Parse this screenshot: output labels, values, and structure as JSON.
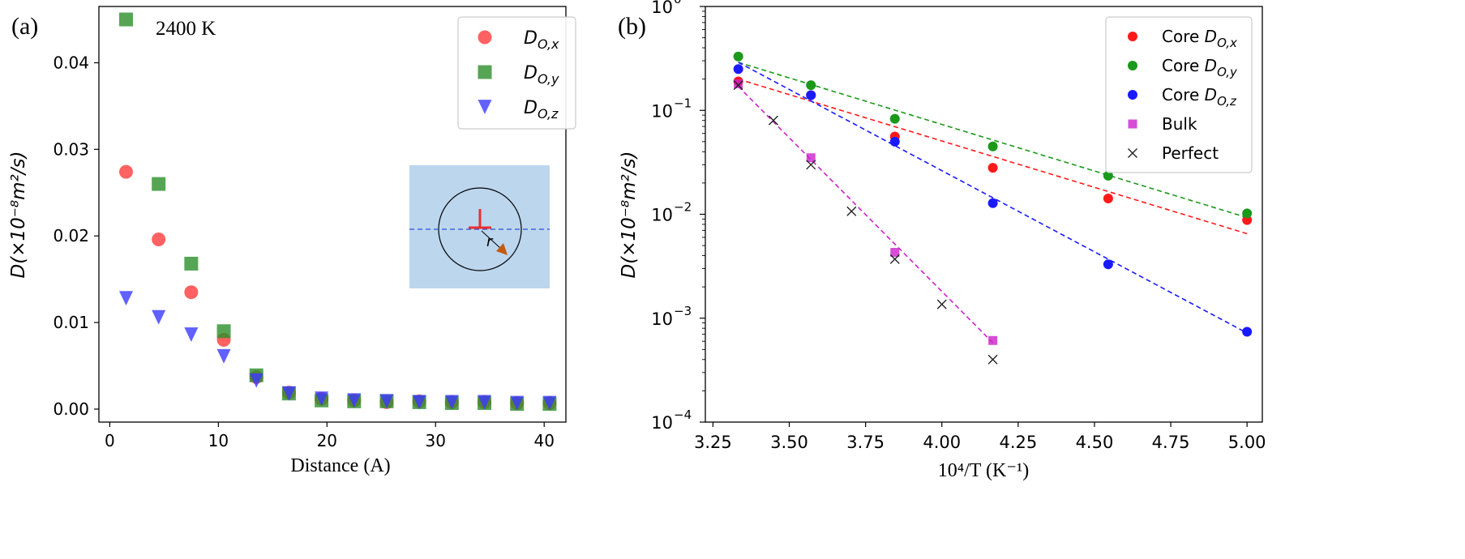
{
  "chart_data": [
    {
      "panel_label": "(a)",
      "type": "scatter",
      "annotation": "2400 K",
      "xlabel": "Distance (A)",
      "ylabel": "D(×10⁻⁸m²/s)",
      "xlim": [
        -1,
        42
      ],
      "ylim": [
        -0.0015,
        0.0465
      ],
      "xticks": [
        0,
        10,
        20,
        30,
        40
      ],
      "xtick_labels": [
        "0",
        "10",
        "20",
        "30",
        "40"
      ],
      "yticks": [
        0,
        0.01,
        0.02,
        0.03,
        0.04
      ],
      "ytick_labels": [
        "0.00",
        "0.01",
        "0.02",
        "0.03",
        "0.04"
      ],
      "legend_position": "top-right",
      "series": [
        {
          "name": "D_{O,x}",
          "legend_main": "D",
          "legend_sub": "O,x",
          "marker": "circle",
          "color": "#ff3b3b",
          "x": [
            1.5,
            4.5,
            7.5,
            10.5,
            13.5,
            16.5,
            19.5,
            22.5,
            25.5,
            28.5,
            31.5,
            34.5,
            37.5,
            40.5
          ],
          "y": [
            0.0274,
            0.0196,
            0.0135,
            0.008,
            0.0037,
            0.0019,
            0.0012,
            0.001,
            0.0008,
            0.0009,
            0.0008,
            0.0008,
            0.0007,
            0.0007
          ]
        },
        {
          "name": "D_{O,y}",
          "legend_main": "D",
          "legend_sub": "O,y",
          "marker": "square",
          "color": "#2a8f2a",
          "x": [
            1.5,
            4.5,
            7.5,
            10.5,
            13.5,
            16.5,
            19.5,
            22.5,
            25.5,
            28.5,
            31.5,
            34.5,
            37.5,
            40.5
          ],
          "y": [
            0.045,
            0.026,
            0.0168,
            0.009,
            0.0039,
            0.0018,
            0.001,
            0.0009,
            0.0009,
            0.0008,
            0.0007,
            0.0007,
            0.0006,
            0.0006
          ]
        },
        {
          "name": "D_{O,z}",
          "legend_main": "D",
          "legend_sub": "O,z",
          "marker": "triangle-down",
          "color": "#3a3aff",
          "x": [
            1.5,
            4.5,
            7.5,
            10.5,
            13.5,
            16.5,
            19.5,
            22.5,
            25.5,
            28.5,
            31.5,
            34.5,
            37.5,
            40.5
          ],
          "y": [
            0.0128,
            0.0106,
            0.0086,
            0.0061,
            0.0033,
            0.0018,
            0.0012,
            0.001,
            0.0009,
            0.0008,
            0.0008,
            0.0008,
            0.0007,
            0.0007
          ]
        }
      ],
      "inset": {
        "label": "r",
        "description": "dislocation core schematic"
      }
    },
    {
      "panel_label": "(b)",
      "type": "scatter",
      "scale_y": "log",
      "xlabel": "10⁴/T (K⁻¹)",
      "ylabel": "D(×10⁻⁸m²/s)",
      "xlim": [
        3.225,
        5.05
      ],
      "ylim_exp": [
        -4,
        0
      ],
      "xticks": [
        3.25,
        3.5,
        3.75,
        4.0,
        4.25,
        4.5,
        4.75,
        5.0
      ],
      "xtick_labels": [
        "3.25",
        "3.50",
        "3.75",
        "4.00",
        "4.25",
        "4.50",
        "4.75",
        "5.00"
      ],
      "yticks_exp": [
        -4,
        -3,
        -2,
        -1,
        0
      ],
      "ytick_labels": [
        "10",
        "10",
        "10",
        "10",
        "10"
      ],
      "ytick_exponents": [
        "−4",
        "−3",
        "−2",
        "−1",
        "0"
      ],
      "legend_position": "top-right",
      "series": [
        {
          "name": "Core D_{O,x}",
          "legend_prefix": "Core ",
          "legend_main": "D",
          "legend_sub": "O,x",
          "marker": "dot",
          "color": "#ff1a1a",
          "x": [
            3.333,
            3.571,
            3.846,
            4.167,
            4.545,
            5.0
          ],
          "y": [
            0.19,
            0.14,
            0.056,
            0.028,
            0.0142,
            0.0088
          ],
          "fit": {
            "x": [
              3.333,
              5.0
            ],
            "y": [
              0.2,
              0.0065
            ]
          }
        },
        {
          "name": "Core D_{O,y}",
          "legend_prefix": "Core ",
          "legend_main": "D",
          "legend_sub": "O,y",
          "marker": "dot",
          "color": "#1a991a",
          "x": [
            3.333,
            3.571,
            3.846,
            4.167,
            4.545,
            5.0
          ],
          "y": [
            0.33,
            0.175,
            0.083,
            0.045,
            0.0235,
            0.0102
          ],
          "fit": {
            "x": [
              3.333,
              5.0
            ],
            "y": [
              0.29,
              0.0093
            ]
          }
        },
        {
          "name": "Core D_{O,z}",
          "legend_prefix": "Core ",
          "legend_main": "D",
          "legend_sub": "O,z",
          "marker": "dot",
          "color": "#1a1aff",
          "x": [
            3.333,
            3.571,
            3.846,
            4.167,
            4.545,
            5.0
          ],
          "y": [
            0.25,
            0.14,
            0.05,
            0.0128,
            0.0033,
            0.00074
          ],
          "fit": {
            "x": [
              3.333,
              5.0
            ],
            "y": [
              0.29,
              0.00072
            ]
          }
        },
        {
          "name": "Bulk",
          "legend_prefix": "Bulk",
          "legend_main": "",
          "legend_sub": "",
          "marker": "square",
          "color": "#cc22cc",
          "x": [
            3.333,
            3.571,
            3.846,
            4.167
          ],
          "y": [
            0.18,
            0.035,
            0.0043,
            0.00061
          ],
          "fit": {
            "x": [
              3.333,
              4.167
            ],
            "y": [
              0.17,
              0.00058
            ]
          }
        },
        {
          "name": "Perfect",
          "legend_prefix": "Perfect",
          "legend_main": "",
          "legend_sub": "",
          "marker": "x",
          "color": "#222222",
          "x": [
            3.333,
            3.448,
            3.571,
            3.704,
            3.846,
            4.0,
            4.167
          ],
          "y": [
            0.175,
            0.08,
            0.03,
            0.0107,
            0.0037,
            0.00136,
            0.0004
          ]
        }
      ]
    }
  ]
}
